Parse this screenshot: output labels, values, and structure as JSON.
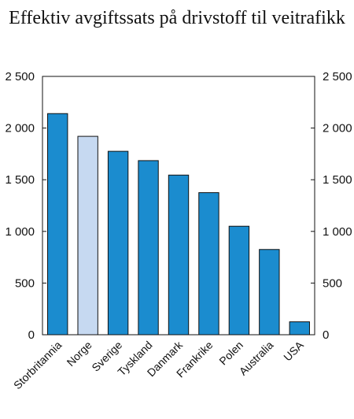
{
  "chart_data": {
    "type": "bar",
    "title": "Effektiv avgiftssats på drivstoff til veitrafikk",
    "categories": [
      "Storbritannia",
      "Norge",
      "Sverige",
      "Tyskland",
      "Danmark",
      "Frankrike",
      "Polen",
      "Australia",
      "USA"
    ],
    "values": [
      2140,
      1920,
      1775,
      1685,
      1545,
      1375,
      1050,
      825,
      125
    ],
    "highlight_category": "Norge",
    "ylim": [
      0,
      2500
    ],
    "yticks": [
      0,
      500,
      1000,
      1500,
      2000,
      2500
    ],
    "ytick_labels": [
      "0",
      "500",
      "1 000",
      "1 500",
      "2 000",
      "2 500"
    ],
    "secondary_y_axis": true,
    "grid": false,
    "colors": {
      "bar": "#1b8ccf",
      "highlight": "#c6d9f1",
      "edge": "#111111"
    }
  }
}
